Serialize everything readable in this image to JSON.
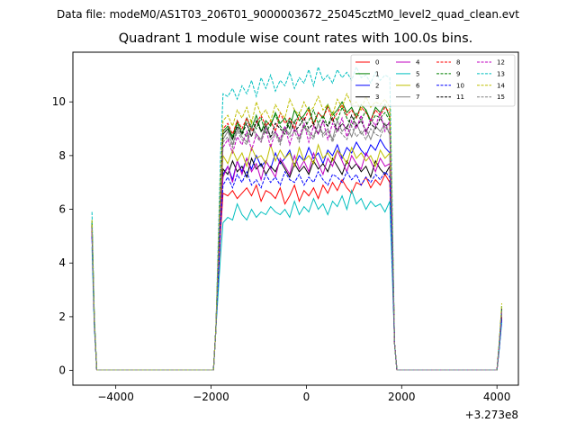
{
  "header": {
    "suptitle": "Data file: modeM0/AS1T03_206T01_9000003672_25045cztM0_level2_quad_clean.evt",
    "title": "Quadrant 1 module wise count rates with 100.0s bins."
  },
  "chart_data": {
    "type": "line",
    "title": "Quadrant 1 module wise count rates with 100.0s bins.",
    "xlabel": "",
    "ylabel": "",
    "x_offset_label": "+3.273e8",
    "xlim": [
      -4900,
      4450
    ],
    "ylim": [
      -0.55,
      11.85
    ],
    "xticks": [
      -4000,
      -2000,
      0,
      2000,
      4000
    ],
    "xtick_labels": [
      "−4000",
      "−2000",
      "0",
      "2000",
      "4000"
    ],
    "yticks": [
      0,
      2,
      4,
      6,
      8,
      10
    ],
    "ytick_labels": [
      "0",
      "2",
      "4",
      "6",
      "8",
      "10"
    ],
    "grid": false,
    "legend_placement": "top-right",
    "legend_columns": 4,
    "segments": {
      "pre_ramp": [
        -4500,
        -4450,
        -4400
      ],
      "flat_low": [
        -4400,
        -1950
      ],
      "rise_edge": [
        -1900,
        -1800
      ],
      "plateau_start": -1750,
      "plateau_end": 1750,
      "plateau_step": 100,
      "fall_edge": [
        1800,
        1850
      ],
      "flat_low_2": [
        1900,
        4000
      ],
      "post_ramp": [
        4050,
        4100
      ]
    },
    "series": [
      {
        "name": "0",
        "color": "#ff0000",
        "dash": "solid",
        "start_value": 5.3,
        "plateau": [
          6.6,
          6.5,
          6.7,
          6.4,
          6.6,
          6.8,
          6.5,
          6.9,
          6.3,
          6.7,
          6.6,
          6.4,
          6.8,
          6.2,
          6.5,
          6.9,
          6.3,
          6.7,
          6.5,
          6.8,
          6.4,
          6.9,
          6.6,
          7.0,
          6.7,
          7.1,
          6.8,
          6.6,
          7.0,
          6.9,
          7.2,
          6.8,
          7.1,
          6.9,
          7.3,
          7.0
        ],
        "end_value": 2.0
      },
      {
        "name": "1",
        "color": "#008000",
        "dash": "solid",
        "start_value": 5.6,
        "plateau": [
          8.9,
          9.1,
          8.7,
          9.3,
          8.8,
          9.4,
          9.0,
          9.5,
          8.9,
          9.3,
          9.1,
          9.6,
          9.2,
          9.4,
          9.0,
          9.7,
          9.3,
          9.5,
          9.8,
          9.2,
          9.6,
          9.4,
          9.9,
          9.5,
          9.7,
          10.0,
          9.6,
          9.8,
          9.4,
          9.9,
          9.7,
          9.3,
          9.8,
          9.6,
          9.9,
          9.4
        ],
        "end_value": 2.3
      },
      {
        "name": "2",
        "color": "#0000ff",
        "dash": "solid",
        "start_value": 5.0,
        "plateau": [
          7.3,
          7.6,
          7.1,
          7.8,
          7.4,
          7.9,
          7.5,
          8.0,
          7.6,
          7.8,
          7.5,
          8.1,
          7.7,
          7.9,
          8.2,
          7.6,
          8.0,
          7.8,
          8.3,
          7.9,
          8.1,
          7.7,
          8.2,
          8.0,
          8.4,
          7.9,
          8.3,
          8.1,
          8.5,
          8.2,
          8.0,
          8.4,
          8.2,
          8.6,
          8.3,
          8.1
        ],
        "end_value": 1.9
      },
      {
        "name": "3",
        "color": "#000000",
        "dash": "solid",
        "start_value": 5.2,
        "plateau": [
          7.5,
          7.3,
          7.8,
          7.4,
          7.6,
          7.2,
          7.9,
          7.5,
          7.7,
          7.3,
          7.6,
          7.4,
          7.8,
          7.5,
          7.2,
          7.7,
          7.4,
          7.6,
          7.3,
          7.8,
          7.5,
          7.7,
          7.4,
          7.9,
          7.6,
          7.3,
          7.8,
          7.5,
          7.7,
          7.4,
          7.6,
          7.2,
          7.8,
          7.5,
          7.3,
          7.6
        ],
        "end_value": 2.0
      },
      {
        "name": "4",
        "color": "#c000c0",
        "dash": "solid",
        "start_value": 5.1,
        "plateau": [
          7.2,
          7.6,
          7.0,
          7.8,
          7.3,
          7.9,
          7.4,
          7.7,
          7.1,
          7.8,
          7.5,
          7.2,
          7.9,
          7.6,
          7.3,
          8.0,
          7.5,
          7.8,
          7.4,
          8.1,
          7.7,
          7.3,
          7.9,
          7.6,
          8.2,
          7.8,
          7.4,
          8.0,
          7.7,
          7.5,
          8.1,
          7.8,
          7.4,
          7.9,
          7.6,
          7.7
        ],
        "end_value": 2.1
      },
      {
        "name": "5",
        "color": "#00bfbf",
        "dash": "solid",
        "start_value": 4.6,
        "plateau": [
          5.5,
          5.7,
          5.6,
          6.2,
          5.8,
          5.6,
          6.0,
          5.7,
          5.9,
          5.8,
          6.1,
          5.9,
          5.8,
          6.0,
          5.7,
          6.3,
          5.8,
          6.1,
          5.9,
          6.4,
          6.0,
          6.2,
          5.8,
          6.3,
          6.1,
          6.5,
          6.0,
          6.7,
          6.2,
          6.4,
          6.0,
          6.3,
          6.1,
          6.2,
          5.9,
          6.3
        ],
        "end_value": 1.8
      },
      {
        "name": "6",
        "color": "#bfbf00",
        "dash": "solid",
        "start_value": 5.3,
        "plateau": [
          8.0,
          7.7,
          8.2,
          7.8,
          8.1,
          7.6,
          8.3,
          7.9,
          8.0,
          7.7,
          8.4,
          7.8,
          8.2,
          7.9,
          8.1,
          7.6,
          8.3,
          7.8,
          8.0,
          7.7,
          8.4,
          7.9,
          8.1,
          7.8,
          8.2,
          8.0,
          7.7,
          8.3,
          7.9,
          8.1,
          7.8,
          8.0,
          7.6,
          8.2,
          7.9,
          8.1
        ],
        "end_value": 2.2
      },
      {
        "name": "7",
        "color": "#808080",
        "dash": "solid",
        "start_value": 5.5,
        "plateau": [
          8.6,
          8.9,
          8.4,
          9.0,
          8.7,
          8.5,
          9.1,
          8.8,
          8.6,
          9.2,
          8.7,
          8.9,
          8.5,
          9.0,
          8.8,
          9.3,
          8.6,
          9.1,
          8.9,
          8.7,
          9.2,
          8.8,
          9.0,
          8.6,
          9.3,
          8.9,
          9.1,
          8.7,
          9.2,
          8.8,
          9.0,
          8.6,
          9.1,
          8.9,
          9.2,
          8.8
        ],
        "end_value": 2.2
      },
      {
        "name": "8",
        "color": "#ff0000",
        "dash": "dashed",
        "start_value": 5.4,
        "plateau": [
          9.0,
          9.2,
          8.8,
          9.3,
          9.0,
          9.4,
          8.9,
          9.2,
          9.5,
          9.1,
          9.3,
          8.9,
          9.6,
          9.2,
          9.4,
          9.0,
          9.5,
          9.3,
          9.7,
          9.1,
          9.6,
          9.4,
          9.8,
          9.3,
          9.6,
          9.9,
          9.5,
          9.7,
          9.4,
          9.8,
          9.6,
          9.3,
          9.7,
          9.5,
          9.8,
          9.6
        ],
        "end_value": 2.3
      },
      {
        "name": "9",
        "color": "#008000",
        "dash": "dashed",
        "start_value": 5.5,
        "plateau": [
          8.8,
          9.0,
          8.6,
          9.2,
          8.9,
          8.7,
          9.3,
          9.0,
          9.4,
          8.8,
          9.2,
          9.5,
          9.1,
          8.9,
          9.4,
          9.2,
          9.6,
          9.0,
          9.3,
          9.7,
          9.2,
          9.5,
          9.1,
          9.6,
          9.3,
          9.8,
          9.4,
          9.1,
          9.6,
          9.3,
          9.7,
          9.2,
          9.5,
          9.4,
          9.6,
          9.3
        ],
        "end_value": 2.2
      },
      {
        "name": "10",
        "color": "#0000ff",
        "dash": "dashed",
        "start_value": 5.0,
        "plateau": [
          6.9,
          7.2,
          6.8,
          7.3,
          7.0,
          7.4,
          6.9,
          7.1,
          6.8,
          7.3,
          7.0,
          7.2,
          6.9,
          7.4,
          7.1,
          7.0,
          7.3,
          6.9,
          7.2,
          7.0,
          7.4,
          7.1,
          6.9,
          7.3,
          7.2,
          7.0,
          7.4,
          7.1,
          7.3,
          6.9,
          7.2,
          7.0,
          7.3,
          7.1,
          7.4,
          7.2
        ],
        "end_value": 1.9
      },
      {
        "name": "11",
        "color": "#000000",
        "dash": "dashed",
        "start_value": 5.4,
        "plateau": [
          8.8,
          9.0,
          8.6,
          9.1,
          8.8,
          9.2,
          8.7,
          9.3,
          8.9,
          9.1,
          8.7,
          9.2,
          9.0,
          8.8,
          9.3,
          8.9,
          9.1,
          9.4,
          9.0,
          9.2,
          8.8,
          9.3,
          9.1,
          9.4,
          8.9,
          9.2,
          9.0,
          9.5,
          9.1,
          9.3,
          8.9,
          9.2,
          9.0,
          9.4,
          9.1,
          9.2
        ],
        "end_value": 2.3
      },
      {
        "name": "12",
        "color": "#c000c0",
        "dash": "dashed",
        "start_value": 5.3,
        "plateau": [
          8.3,
          8.6,
          8.1,
          8.7,
          8.4,
          8.9,
          8.2,
          8.8,
          8.5,
          9.0,
          8.3,
          8.9,
          8.6,
          9.1,
          8.4,
          9.0,
          8.7,
          9.2,
          8.5,
          9.1,
          8.8,
          9.3,
          8.6,
          9.2,
          8.9,
          9.4,
          8.7,
          9.3,
          9.0,
          9.5,
          8.8,
          9.4,
          9.1,
          9.6,
          8.9,
          9.3
        ],
        "end_value": 2.2
      },
      {
        "name": "13",
        "color": "#00bfbf",
        "dash": "dashed",
        "start_value": 5.9,
        "plateau": [
          10.3,
          10.2,
          10.5,
          10.1,
          10.6,
          10.3,
          10.8,
          10.2,
          10.9,
          10.5,
          11.0,
          10.4,
          10.8,
          10.6,
          11.1,
          10.5,
          10.9,
          10.7,
          11.2,
          10.6,
          11.3,
          10.8,
          11.0,
          10.7,
          11.2,
          10.9,
          11.1,
          10.8,
          11.3,
          10.9,
          11.0,
          10.7,
          11.1,
          10.8,
          11.0,
          10.9
        ],
        "end_value": 2.4
      },
      {
        "name": "14",
        "color": "#bfbf00",
        "dash": "dashed",
        "start_value": 5.6,
        "plateau": [
          9.3,
          9.5,
          9.1,
          9.7,
          9.4,
          9.8,
          9.2,
          10.0,
          9.5,
          9.7,
          9.3,
          9.9,
          9.6,
          9.4,
          10.1,
          9.7,
          9.5,
          10.0,
          9.6,
          9.8,
          10.2,
          9.7,
          9.9,
          9.5,
          10.1,
          9.8,
          10.3,
          9.9,
          10.0,
          9.7,
          10.2,
          9.8,
          10.0,
          9.9,
          10.1,
          9.8
        ],
        "end_value": 2.5
      },
      {
        "name": "15",
        "color": "#808080",
        "dash": "dashed",
        "start_value": 5.3,
        "plateau": [
          8.5,
          8.7,
          8.3,
          8.9,
          8.6,
          8.4,
          9.0,
          8.7,
          8.5,
          9.1,
          8.6,
          8.8,
          8.4,
          9.0,
          8.7,
          8.9,
          8.5,
          9.1,
          8.8,
          8.6,
          9.2,
          8.7,
          8.9,
          8.5,
          9.0,
          8.8,
          8.6,
          9.1,
          8.7,
          8.9,
          8.6,
          9.0,
          8.8,
          8.7,
          9.1,
          8.8
        ],
        "end_value": 2.2
      }
    ]
  }
}
